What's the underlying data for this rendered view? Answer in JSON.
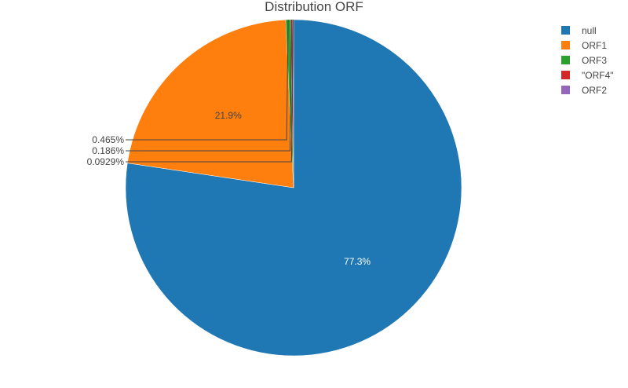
{
  "chart_data": {
    "type": "pie",
    "title": "Distribution ORF",
    "labels": [
      "null",
      "ORF1",
      "ORF3",
      "\"ORF4\"",
      "ORF2"
    ],
    "values": [
      77.3,
      21.9,
      0.465,
      0.186,
      0.0929
    ],
    "value_labels": [
      "77.3%",
      "21.9%",
      "0.465%",
      "0.186%",
      "0.0929%"
    ],
    "colors": [
      "#1f77b4",
      "#ff7f0e",
      "#2ca02c",
      "#d62728",
      "#9467bd"
    ],
    "direction": "clockwise",
    "start": "12 o'clock",
    "legend_position": "right"
  }
}
